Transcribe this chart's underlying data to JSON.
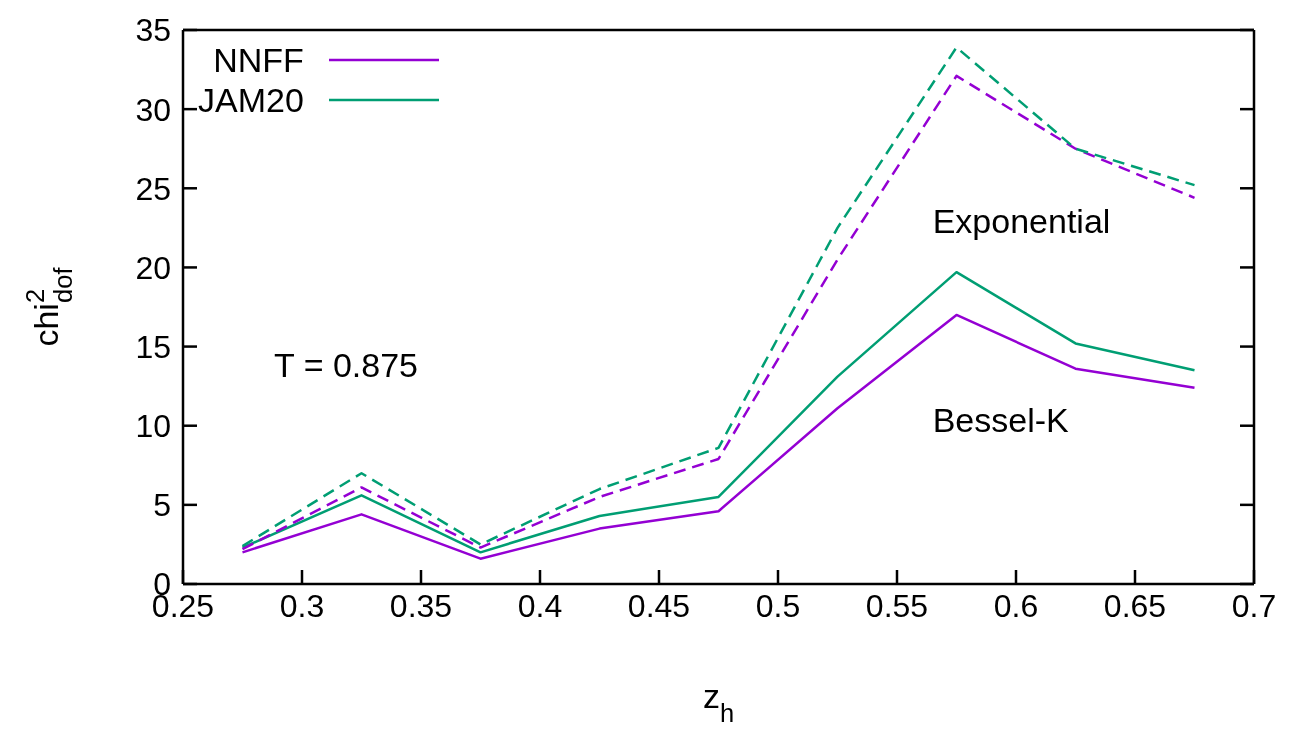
{
  "chart_data": {
    "type": "line",
    "xlabel": "z$_{h}$",
    "ylabel": "chi$^{2}$$_{dof}$",
    "xlim": [
      0.25,
      0.7
    ],
    "xticks": [
      0.25,
      0.3,
      0.35,
      0.4,
      0.45,
      0.5,
      0.55,
      0.6,
      0.65,
      0.7
    ],
    "ylim": [
      0,
      35
    ],
    "yticks": [
      0,
      5,
      10,
      15,
      20,
      25,
      30,
      35
    ],
    "x": [
      0.275,
      0.325,
      0.375,
      0.425,
      0.475,
      0.525,
      0.575,
      0.625,
      0.675
    ],
    "series": [
      {
        "name": "NNFF",
        "color": "#9400d3",
        "line_style": "solid",
        "values": [
          2.0,
          4.4,
          1.6,
          3.5,
          4.6,
          11.1,
          17.0,
          13.6,
          12.4
        ]
      },
      {
        "name": "JAM20",
        "color": "#009e73",
        "line_style": "solid",
        "values": [
          2.3,
          5.6,
          2.0,
          4.3,
          5.5,
          13.1,
          19.7,
          15.2,
          13.5
        ]
      },
      {
        "color": "#9400d3",
        "line_style": "dashed",
        "values": [
          2.2,
          6.1,
          2.3,
          5.5,
          7.9,
          20.5,
          32.1,
          27.5,
          24.4
        ]
      },
      {
        "color": "#009e73",
        "line_style": "dashed",
        "values": [
          2.4,
          7.0,
          2.5,
          6.0,
          8.6,
          22.5,
          33.9,
          27.5,
          25.2
        ]
      }
    ],
    "annotations": [
      "T = 0.875",
      "Exponential",
      "Bessel-K"
    ],
    "legend": "top left",
    "grid": false,
    "marker": "none"
  }
}
